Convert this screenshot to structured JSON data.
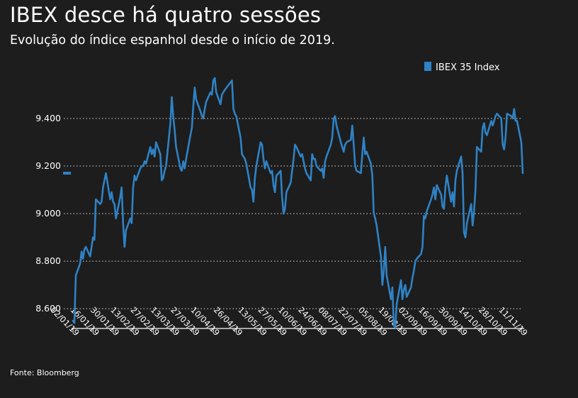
{
  "title": "IBEX desce há quatro sessões",
  "subtitle": "Evolução do índice espanhol desde o início de 2019.",
  "source": "Fonte: Bloomberg",
  "colors": {
    "background": "#1d1d1d",
    "line": "#2f82c4",
    "text": "#ffffff",
    "grid": "#ffffff"
  },
  "chart_data": {
    "type": "line",
    "title": "IBEX desce há quatro sessões",
    "subtitle": "Evolução do índice espanhol desde o início de 2019.",
    "legend": "top-right",
    "grid": "horizontal dotted",
    "ylim": [
      8520,
      9570
    ],
    "yticks": [
      8600,
      8800,
      9000,
      9200,
      9400
    ],
    "ytick_labels": [
      "8.600",
      "8.800",
      "9.000",
      "9.200",
      "9.400"
    ],
    "last_value_marker": 9170,
    "xticks": [
      "2019-01-02",
      "2019-01-16",
      "2019-01-30",
      "2019-02-13",
      "2019-02-27",
      "2019-03-13",
      "2019-03-27",
      "2019-04-10",
      "2019-04-26",
      "2019-05-13",
      "2019-05-27",
      "2019-06-10",
      "2019-06-24",
      "2019-07-08",
      "2019-07-22",
      "2019-08-05",
      "2019-08-19",
      "2019-09-02",
      "2019-09-16",
      "2019-09-30",
      "2019-10-14",
      "2019-10-28",
      "2019-11-11"
    ],
    "xtick_labels": [
      "02/01/19",
      "16/01/19",
      "30/01/19",
      "13/02/19",
      "27/02/19",
      "13/03/19",
      "27/03/19",
      "10/04/19",
      "26/04/19",
      "13/05/19",
      "27/05/19",
      "10/06/19",
      "24/06/19",
      "08/07/19",
      "22/07/19",
      "05/08/19",
      "19/08/19",
      "02/09/19",
      "16/09/19",
      "30/09/19",
      "14/10/19",
      "28/10/19",
      "11/11/19"
    ],
    "series": [
      {
        "name": "IBEX 35 Index",
        "color": "#2f82c4",
        "points": [
          [
            "2019-01-02",
            8550
          ],
          [
            "2019-01-03",
            8540
          ],
          [
            "2019-01-04",
            8740
          ],
          [
            "2019-01-07",
            8790
          ],
          [
            "2019-01-08",
            8840
          ],
          [
            "2019-01-09",
            8810
          ],
          [
            "2019-01-10",
            8850
          ],
          [
            "2019-01-11",
            8860
          ],
          [
            "2019-01-14",
            8820
          ],
          [
            "2019-01-15",
            8860
          ],
          [
            "2019-01-16",
            8900
          ],
          [
            "2019-01-17",
            8890
          ],
          [
            "2019-01-18",
            9060
          ],
          [
            "2019-01-21",
            9040
          ],
          [
            "2019-01-22",
            9050
          ],
          [
            "2019-01-23",
            9110
          ],
          [
            "2019-01-24",
            9140
          ],
          [
            "2019-01-25",
            9170
          ],
          [
            "2019-01-28",
            9060
          ],
          [
            "2019-01-29",
            9090
          ],
          [
            "2019-01-30",
            9050
          ],
          [
            "2019-01-31",
            9040
          ],
          [
            "2019-02-01",
            8980
          ],
          [
            "2019-02-04",
            9070
          ],
          [
            "2019-02-05",
            9110
          ],
          [
            "2019-02-06",
            8960
          ],
          [
            "2019-02-07",
            8860
          ],
          [
            "2019-02-08",
            8930
          ],
          [
            "2019-02-11",
            8980
          ],
          [
            "2019-02-12",
            8960
          ],
          [
            "2019-02-13",
            9110
          ],
          [
            "2019-02-14",
            9160
          ],
          [
            "2019-02-15",
            9140
          ],
          [
            "2019-02-18",
            9190
          ],
          [
            "2019-02-19",
            9200
          ],
          [
            "2019-02-20",
            9200
          ],
          [
            "2019-02-21",
            9220
          ],
          [
            "2019-02-22",
            9210
          ],
          [
            "2019-02-25",
            9280
          ],
          [
            "2019-02-26",
            9250
          ],
          [
            "2019-02-27",
            9270
          ],
          [
            "2019-02-28",
            9240
          ],
          [
            "2019-03-01",
            9300
          ],
          [
            "2019-03-04",
            9250
          ],
          [
            "2019-03-05",
            9140
          ],
          [
            "2019-03-06",
            9150
          ],
          [
            "2019-03-07",
            9180
          ],
          [
            "2019-03-08",
            9200
          ],
          [
            "2019-03-11",
            9380
          ],
          [
            "2019-03-12",
            9490
          ],
          [
            "2019-03-13",
            9410
          ],
          [
            "2019-03-14",
            9350
          ],
          [
            "2019-03-15",
            9280
          ],
          [
            "2019-03-18",
            9190
          ],
          [
            "2019-03-19",
            9180
          ],
          [
            "2019-03-20",
            9220
          ],
          [
            "2019-03-21",
            9190
          ],
          [
            "2019-03-22",
            9230
          ],
          [
            "2019-03-25",
            9330
          ],
          [
            "2019-03-26",
            9360
          ],
          [
            "2019-03-27",
            9450
          ],
          [
            "2019-03-28",
            9530
          ],
          [
            "2019-03-29",
            9480
          ],
          [
            "2019-04-01",
            9430
          ],
          [
            "2019-04-02",
            9410
          ],
          [
            "2019-04-03",
            9400
          ],
          [
            "2019-04-04",
            9440
          ],
          [
            "2019-04-05",
            9470
          ],
          [
            "2019-04-08",
            9510
          ],
          [
            "2019-04-09",
            9500
          ],
          [
            "2019-04-10",
            9560
          ],
          [
            "2019-04-11",
            9570
          ],
          [
            "2019-04-12",
            9510
          ],
          [
            "2019-04-15",
            9460
          ],
          [
            "2019-04-16",
            9500
          ],
          [
            "2019-04-17",
            9510
          ],
          [
            "2019-04-18",
            9520
          ],
          [
            "2019-04-23",
            9560
          ],
          [
            "2019-04-24",
            9440
          ],
          [
            "2019-04-25",
            9420
          ],
          [
            "2019-04-26",
            9410
          ],
          [
            "2019-04-29",
            9320
          ],
          [
            "2019-04-30",
            9250
          ],
          [
            "2019-05-02",
            9230
          ],
          [
            "2019-05-03",
            9210
          ],
          [
            "2019-05-06",
            9110
          ],
          [
            "2019-05-07",
            9100
          ],
          [
            "2019-05-08",
            9050
          ],
          [
            "2019-05-09",
            9150
          ],
          [
            "2019-05-10",
            9200
          ],
          [
            "2019-05-13",
            9300
          ],
          [
            "2019-05-14",
            9290
          ],
          [
            "2019-05-15",
            9230
          ],
          [
            "2019-05-16",
            9190
          ],
          [
            "2019-05-17",
            9220
          ],
          [
            "2019-05-20",
            9170
          ],
          [
            "2019-05-21",
            9180
          ],
          [
            "2019-05-22",
            9120
          ],
          [
            "2019-05-23",
            9090
          ],
          [
            "2019-05-24",
            9160
          ],
          [
            "2019-05-27",
            9180
          ],
          [
            "2019-05-28",
            9070
          ],
          [
            "2019-05-29",
            9000
          ],
          [
            "2019-05-30",
            9020
          ],
          [
            "2019-05-31",
            9090
          ],
          [
            "2019-06-03",
            9130
          ],
          [
            "2019-06-04",
            9180
          ],
          [
            "2019-06-05",
            9230
          ],
          [
            "2019-06-06",
            9290
          ],
          [
            "2019-06-07",
            9280
          ],
          [
            "2019-06-10",
            9240
          ],
          [
            "2019-06-11",
            9250
          ],
          [
            "2019-06-12",
            9220
          ],
          [
            "2019-06-13",
            9190
          ],
          [
            "2019-06-14",
            9170
          ],
          [
            "2019-06-17",
            9140
          ],
          [
            "2019-06-18",
            9250
          ],
          [
            "2019-06-19",
            9230
          ],
          [
            "2019-06-20",
            9230
          ],
          [
            "2019-06-21",
            9200
          ],
          [
            "2019-06-24",
            9180
          ],
          [
            "2019-06-25",
            9190
          ],
          [
            "2019-06-26",
            9150
          ],
          [
            "2019-06-27",
            9220
          ],
          [
            "2019-06-28",
            9240
          ],
          [
            "2019-07-01",
            9290
          ],
          [
            "2019-07-02",
            9320
          ],
          [
            "2019-07-03",
            9400
          ],
          [
            "2019-07-04",
            9410
          ],
          [
            "2019-07-05",
            9370
          ],
          [
            "2019-07-08",
            9300
          ],
          [
            "2019-07-09",
            9280
          ],
          [
            "2019-07-10",
            9260
          ],
          [
            "2019-07-11",
            9290
          ],
          [
            "2019-07-12",
            9300
          ],
          [
            "2019-07-15",
            9310
          ],
          [
            "2019-07-16",
            9370
          ],
          [
            "2019-07-17",
            9290
          ],
          [
            "2019-07-18",
            9200
          ],
          [
            "2019-07-19",
            9180
          ],
          [
            "2019-07-22",
            9170
          ],
          [
            "2019-07-23",
            9250
          ],
          [
            "2019-07-24",
            9320
          ],
          [
            "2019-07-25",
            9250
          ],
          [
            "2019-07-26",
            9260
          ],
          [
            "2019-07-29",
            9210
          ],
          [
            "2019-07-30",
            9160
          ],
          [
            "2019-07-31",
            9000
          ],
          [
            "2019-08-01",
            8980
          ],
          [
            "2019-08-02",
            8950
          ],
          [
            "2019-08-05",
            8820
          ],
          [
            "2019-08-06",
            8700
          ],
          [
            "2019-08-07",
            8760
          ],
          [
            "2019-08-08",
            8860
          ],
          [
            "2019-08-09",
            8740
          ],
          [
            "2019-08-12",
            8640
          ],
          [
            "2019-08-13",
            8690
          ],
          [
            "2019-08-14",
            8530
          ],
          [
            "2019-08-15",
            8520
          ],
          [
            "2019-08-16",
            8620
          ],
          [
            "2019-08-19",
            8720
          ],
          [
            "2019-08-20",
            8640
          ],
          [
            "2019-08-21",
            8680
          ],
          [
            "2019-08-22",
            8700
          ],
          [
            "2019-08-23",
            8650
          ],
          [
            "2019-08-26",
            8690
          ],
          [
            "2019-08-27",
            8730
          ],
          [
            "2019-08-28",
            8760
          ],
          [
            "2019-08-29",
            8800
          ],
          [
            "2019-08-30",
            8810
          ],
          [
            "2019-09-02",
            8830
          ],
          [
            "2019-09-03",
            8860
          ],
          [
            "2019-09-04",
            8990
          ],
          [
            "2019-09-05",
            8980
          ],
          [
            "2019-09-06",
            9010
          ],
          [
            "2019-09-09",
            9060
          ],
          [
            "2019-09-10",
            9080
          ],
          [
            "2019-09-11",
            9110
          ],
          [
            "2019-09-12",
            9060
          ],
          [
            "2019-09-13",
            9120
          ],
          [
            "2019-09-16",
            9080
          ],
          [
            "2019-09-17",
            9030
          ],
          [
            "2019-09-18",
            9020
          ],
          [
            "2019-09-19",
            9110
          ],
          [
            "2019-09-20",
            9160
          ],
          [
            "2019-09-23",
            9050
          ],
          [
            "2019-09-24",
            9090
          ],
          [
            "2019-09-25",
            9030
          ],
          [
            "2019-09-26",
            9140
          ],
          [
            "2019-09-27",
            9180
          ],
          [
            "2019-09-30",
            9240
          ],
          [
            "2019-10-01",
            9170
          ],
          [
            "2019-10-02",
            8920
          ],
          [
            "2019-10-03",
            8900
          ],
          [
            "2019-10-04",
            8960
          ],
          [
            "2019-10-07",
            9040
          ],
          [
            "2019-10-08",
            8950
          ],
          [
            "2019-10-09",
            9010
          ],
          [
            "2019-10-10",
            9100
          ],
          [
            "2019-10-11",
            9280
          ],
          [
            "2019-10-14",
            9260
          ],
          [
            "2019-10-15",
            9360
          ],
          [
            "2019-10-16",
            9380
          ],
          [
            "2019-10-17",
            9340
          ],
          [
            "2019-10-18",
            9330
          ],
          [
            "2019-10-21",
            9390
          ],
          [
            "2019-10-22",
            9370
          ],
          [
            "2019-10-23",
            9390
          ],
          [
            "2019-10-24",
            9410
          ],
          [
            "2019-10-25",
            9420
          ],
          [
            "2019-10-28",
            9400
          ],
          [
            "2019-10-29",
            9290
          ],
          [
            "2019-10-30",
            9270
          ],
          [
            "2019-10-31",
            9320
          ],
          [
            "2019-11-01",
            9420
          ],
          [
            "2019-11-04",
            9410
          ],
          [
            "2019-11-05",
            9400
          ],
          [
            "2019-11-06",
            9440
          ],
          [
            "2019-11-07",
            9390
          ],
          [
            "2019-11-08",
            9390
          ],
          [
            "2019-11-11",
            9300
          ],
          [
            "2019-11-12",
            9170
          ]
        ]
      }
    ]
  }
}
